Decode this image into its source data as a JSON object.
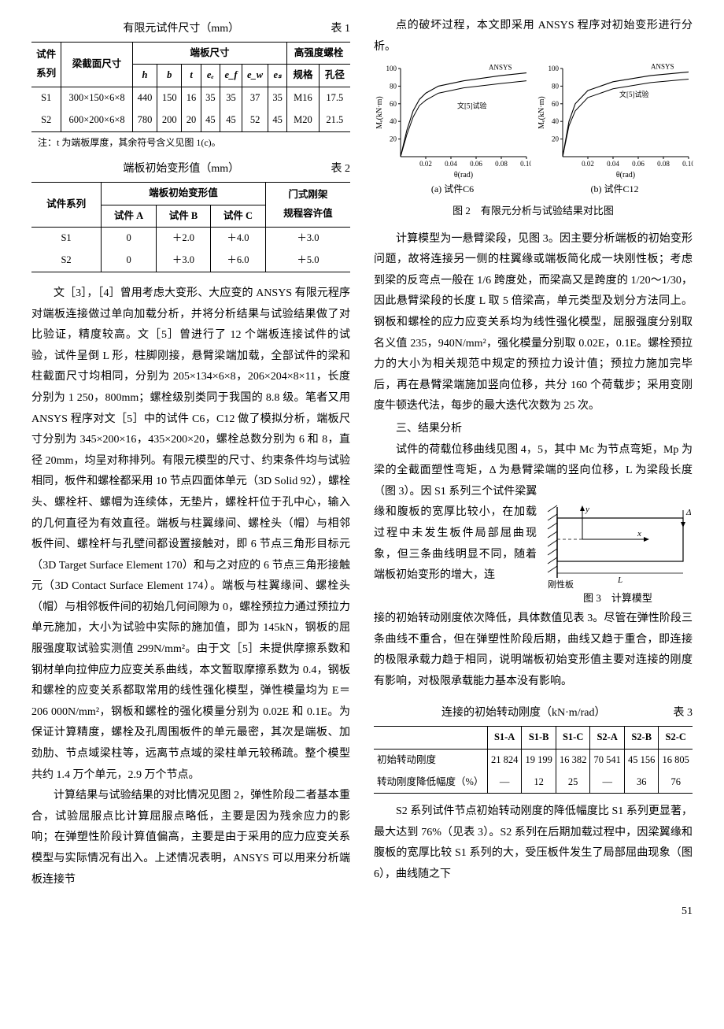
{
  "table1": {
    "title": "有限元试件尺寸（mm）",
    "label": "表 1",
    "headers": {
      "c0": "试件\n系列",
      "c1": "梁截面尺寸",
      "g1": "端板尺寸",
      "g2": "高强度螺栓",
      "h": "h",
      "b": "b",
      "t": "t",
      "ec": "eₑ",
      "ef": "e_f",
      "ew": "e_w",
      "es": "eₛ",
      "spec": "规格",
      "dia": "孔径"
    },
    "rows": [
      {
        "s": "S1",
        "beam": "300×150×6×8",
        "h": "440",
        "b": "150",
        "t": "16",
        "ec": "35",
        "ef": "35",
        "ew": "37",
        "es": "35",
        "spec": "M16",
        "dia": "17.5"
      },
      {
        "s": "S2",
        "beam": "600×200×6×8",
        "h": "780",
        "b": "200",
        "t": "20",
        "ec": "45",
        "ef": "45",
        "ew": "52",
        "es": "45",
        "spec": "M20",
        "dia": "21.5"
      }
    ],
    "note": "注：t 为端板厚度，其余符号含义见图 1(c)。"
  },
  "table2": {
    "title": "端板初始变形值（mm）",
    "label": "表 2",
    "headers": {
      "c0": "试件系列",
      "g1": "端板初始变形值",
      "c1": "试件 A",
      "c2": "试件 B",
      "c3": "试件 C",
      "c4": "门式刚架\n规程容许值"
    },
    "rows": [
      {
        "s": "S1",
        "a": "0",
        "b": "＋2.0",
        "c": "＋4.0",
        "d": "＋3.0"
      },
      {
        "s": "S2",
        "a": "0",
        "b": "＋3.0",
        "c": "＋6.0",
        "d": "＋5.0"
      }
    ]
  },
  "left_para1": "文［3］，［4］曾用考虑大变形、大应变的 ANSYS 有限元程序对端板连接做过单向加载分析，并将分析结果与试验结果做了对比验证，精度较高。文［5］曾进行了 12 个端板连接试件的试验，试件呈倒 L 形，柱脚刚接，悬臂梁端加载，全部试件的梁和柱截面尺寸均相同，分别为 205×134×6×8，206×204×8×11，长度分别为 1 250，800mm；螺栓级别类同于我国的 8.8 级。笔者又用 ANSYS 程序对文［5］中的试件 C6，C12 做了模拟分析，端板尺寸分别为 345×200×16，435×200×20，螺栓总数分别为 6 和 8，直径 20mm，均呈对称排列。有限元模型的尺寸、约束条件均与试验相同，板件和螺栓都采用 10 节点四面体单元（3D Solid 92），螺栓头、螺栓杆、螺帽为连续体，无垫片，螺栓杆位于孔中心，输入的几何直径为有效直径。端板与柱翼缘间、螺栓头（帽）与相邻板件间、螺栓杆与孔壁间都设置接触对，即 6 节点三角形目标元（3D Target Surface Element 170）和与之对应的 6 节点三角形接触元（3D Contact Surface Element 174）。端板与柱翼缘间、螺栓头（帽）与相邻板件间的初始几何间隙为 0，螺栓预拉力通过预拉力单元施加，大小为试验中实际的施加值，即为 145kN，钢板的屈服强度取试验实测值 299N/mm²。由于文［5］未提供摩擦系数和钢材单向拉伸应力应变关系曲线，本文暂取摩擦系数为 0.4，钢板和螺栓的应变关系都取常用的线性强化模型，弹性模量均为 E＝206 000N/mm²，钢板和螺栓的强化模量分别为 0.02E 和 0.1E。为保证计算精度，螺栓及孔周围板件的单元最密，其次是端板、加劲肋、节点域梁柱等，远离节点域的梁柱单元较稀疏。整个模型共约 1.4 万个单元，2.9 万个节点。",
  "left_para2": "计算结果与试验结果的对比情况见图 2，弹性阶段二者基本重合，试验屈服点比计算屈服点略低，主要是因为残余应力的影响；在弹塑性阶段计算值偏高，主要是由于采用的应力应变关系模型与实际情况有出入。上述情况表明，ANSYS 可以用来分析端板连接节",
  "right_para0": "点的破坏过程，本文即采用 ANSYS 程序对初始变形进行分析。",
  "fig2": {
    "caption": "图 2　有限元分析与试验结果对比图",
    "a_sub": "(a) 试件C6",
    "b_sub": "(b) 试件C12",
    "xlabel": "θ(rad)",
    "ylabel": "Mₑ(kN·m)",
    "ansys": "ANSYS",
    "test": "文[5]试验",
    "xticks": [
      "0.02",
      "0.04",
      "0.06",
      "0.08",
      "0.10"
    ],
    "yticks": [
      "20",
      "40",
      "60",
      "80",
      "100"
    ],
    "chart": {
      "xlim": [
        0,
        0.1
      ],
      "ylim": [
        0,
        100
      ],
      "line_colors": {
        "ansys": "#000000",
        "test": "#000000"
      },
      "line_widths": {
        "ansys": 1.1,
        "test": 1.0
      },
      "bg": "#ffffff",
      "a": {
        "ansys": {
          "x": [
            0,
            0.005,
            0.01,
            0.015,
            0.02,
            0.03,
            0.05,
            0.08,
            0.1
          ],
          "y": [
            0,
            30,
            52,
            65,
            72,
            80,
            86,
            92,
            95
          ]
        },
        "test": {
          "x": [
            0,
            0.005,
            0.01,
            0.015,
            0.02,
            0.03,
            0.05,
            0.08,
            0.1
          ],
          "y": [
            0,
            25,
            45,
            58,
            64,
            72,
            78,
            83,
            86
          ]
        }
      },
      "b": {
        "ansys": {
          "x": [
            0,
            0.005,
            0.01,
            0.02,
            0.04,
            0.07,
            0.1
          ],
          "y": [
            0,
            40,
            60,
            75,
            85,
            92,
            96
          ]
        },
        "test": {
          "x": [
            0,
            0.005,
            0.01,
            0.02,
            0.04,
            0.07,
            0.1
          ],
          "y": [
            0,
            35,
            52,
            67,
            77,
            84,
            88
          ]
        }
      }
    }
  },
  "right_para1": "计算模型为一悬臂梁段，见图 3。因主要分析端板的初始变形问题，故将连接另一侧的柱翼缘或端板简化成一块刚性板；考虑到梁的反弯点一般在 1/6 跨度处，而梁高又是跨度的 1/20～1/30，因此悬臂梁段的长度 L 取 5 倍梁高，单元类型及划分方法同上。钢板和螺栓的应力应变关系均为线性强化模型，屈服强度分别取名义值 235，940N/mm²，强化模量分别取 0.02E，0.1E。螺栓预拉力的大小为相关规范中规定的预拉力设计值；预拉力施加完毕后，再在悬臂梁端施加竖向位移，共分 160 个荷载步；采用变刚度牛顿迭代法，每步的最大迭代次数为 25 次。",
  "sec3": "三、结果分析",
  "right_para2": "试件的荷载位移曲线见图 4，5，其中 Mc 为节点弯矩，Mp 为梁的全截面塑性弯矩，Δ 为悬臂梁端的竖向位移，L 为梁段长度（图 3）。因 S1 系列三个试件梁翼",
  "right_para2b": "缘和腹板的宽厚比较小，在加载过程中未发生板件局部屈曲现象，但三条曲线明显不同，随着端板初始变形的增大，连",
  "fig3": {
    "caption": "图 3　计算模型",
    "labels": {
      "y": "y",
      "x": "x",
      "d": "Δ",
      "L": "L",
      "rigid": "刚性板"
    }
  },
  "right_para3": "接的初始转动刚度依次降低，具体数值见表 3。尽管在弹性阶段三条曲线不重合，但在弹塑性阶段后期，曲线又趋于重合，即连接的极限承载力趋于相同，说明端板初始变形值主要对连接的刚度有影响，对极限承载能力基本没有影响。",
  "table3": {
    "title": "连接的初始转动刚度（kN·m/rad）",
    "label": "表 3",
    "cols": [
      "S1-A",
      "S1-B",
      "S1-C",
      "S2-A",
      "S2-B",
      "S2-C"
    ],
    "rows": [
      {
        "h": "初始转动刚度",
        "v": [
          "21 824",
          "19 199",
          "16 382",
          "70 541",
          "45 156",
          "16 805"
        ]
      },
      {
        "h": "转动刚度降低幅度（%）",
        "v": [
          "—",
          "12",
          "25",
          "—",
          "36",
          "76"
        ]
      }
    ]
  },
  "right_para4": "S2 系列试件节点初始转动刚度的降低幅度比 S1 系列更显著，最大达到 76%（见表 3）。S2 系列在后期加载过程中，因梁翼缘和腹板的宽厚比较 S1 系列的大，受压板件发生了局部屈曲现象（图 6），曲线随之下",
  "page_num": "51"
}
